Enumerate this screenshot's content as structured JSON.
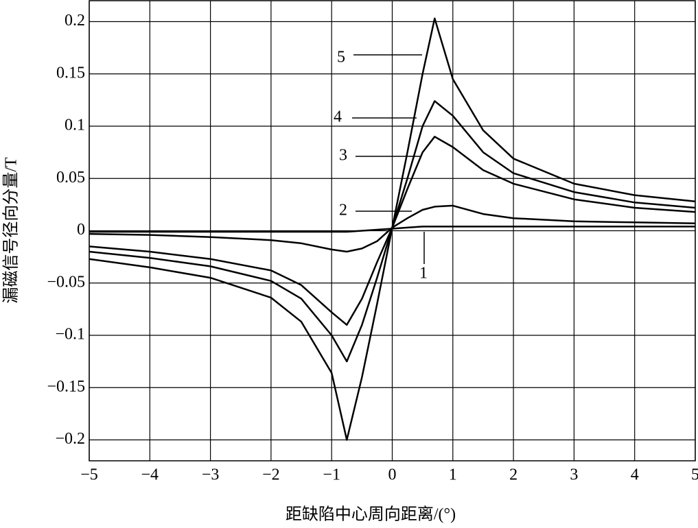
{
  "chart_data": {
    "type": "line",
    "x_label": "距缺陷中心周向距离/(°)",
    "y_label": "漏磁信号径向分量/T",
    "x": [
      -5,
      -4,
      -3,
      -2,
      -1.5,
      -1,
      -0.75,
      -0.5,
      -0.25,
      0,
      0.25,
      0.5,
      0.7,
      1,
      1.5,
      2,
      3,
      4,
      5
    ],
    "series": [
      {
        "name": "1",
        "color": "#000000",
        "values": [
          -0.001,
          -0.001,
          -0.001,
          -0.001,
          -0.001,
          -0.001,
          -0.001,
          0,
          0.001,
          0.002,
          0.003,
          0.004,
          0.004,
          0.004,
          0.004,
          0.004,
          0.004,
          0.004,
          0.004
        ]
      },
      {
        "name": "2",
        "color": "#000000",
        "values": [
          -0.003,
          -0.004,
          -0.006,
          -0.009,
          -0.012,
          -0.018,
          -0.02,
          -0.017,
          -0.01,
          0.003,
          0.012,
          0.02,
          0.023,
          0.024,
          0.016,
          0.012,
          0.009,
          0.008,
          0.007
        ]
      },
      {
        "name": "3",
        "color": "#000000",
        "values": [
          -0.015,
          -0.02,
          -0.027,
          -0.038,
          -0.052,
          -0.078,
          -0.09,
          -0.065,
          -0.03,
          0.003,
          0.04,
          0.075,
          0.09,
          0.08,
          0.058,
          0.045,
          0.03,
          0.022,
          0.018
        ]
      },
      {
        "name": "4",
        "color": "#000000",
        "values": [
          -0.02,
          -0.026,
          -0.034,
          -0.048,
          -0.065,
          -0.1,
          -0.125,
          -0.09,
          -0.045,
          0.003,
          0.05,
          0.1,
          0.124,
          0.11,
          0.075,
          0.055,
          0.037,
          0.027,
          0.022
        ]
      },
      {
        "name": "5",
        "color": "#000000",
        "values": [
          -0.027,
          -0.035,
          -0.045,
          -0.064,
          -0.087,
          -0.136,
          -0.2,
          -0.14,
          -0.07,
          0.003,
          0.075,
          0.15,
          0.203,
          0.145,
          0.096,
          0.069,
          0.045,
          0.034,
          0.028
        ]
      }
    ],
    "xlim": [
      -5,
      5
    ],
    "ylim": [
      -0.22,
      0.22
    ],
    "xticks": [
      {
        "value": -5,
        "label": "−5"
      },
      {
        "value": -4,
        "label": "−4"
      },
      {
        "value": -3,
        "label": "−3"
      },
      {
        "value": -2,
        "label": "−2"
      },
      {
        "value": -1,
        "label": "−1"
      },
      0,
      1,
      2,
      3,
      4,
      5
    ],
    "yticks": [
      {
        "value": -0.2,
        "label": "−0.2"
      },
      {
        "value": -0.15,
        "label": "−0.15"
      },
      {
        "value": -0.1,
        "label": "−0.1"
      },
      {
        "value": -0.05,
        "label": "−0.05"
      },
      0,
      0.05,
      0.1,
      0.15,
      0.2
    ],
    "grid": true
  }
}
